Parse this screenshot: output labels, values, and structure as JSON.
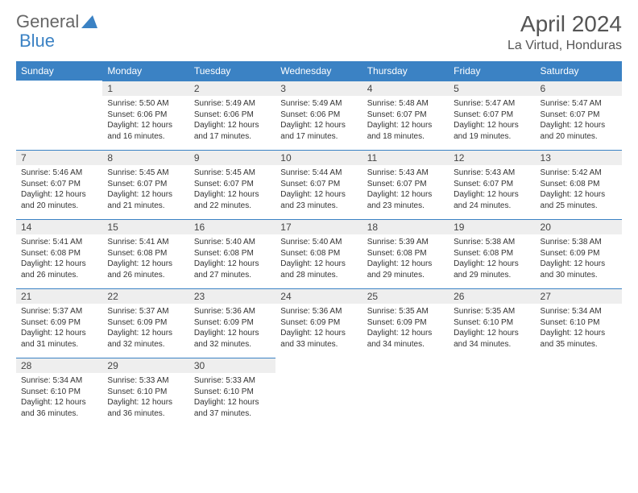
{
  "logo": {
    "text1": "General",
    "text2": "Blue"
  },
  "title": "April 2024",
  "location": "La Virtud, Honduras",
  "theme": {
    "header_bg": "#3b82c4",
    "daynum_bg": "#eeeeee",
    "text": "#333",
    "title_color": "#555"
  },
  "weekdays": [
    "Sunday",
    "Monday",
    "Tuesday",
    "Wednesday",
    "Thursday",
    "Friday",
    "Saturday"
  ],
  "weeks": [
    [
      null,
      {
        "n": "1",
        "sr": "5:50 AM",
        "ss": "6:06 PM",
        "dl": "12 hours and 16 minutes."
      },
      {
        "n": "2",
        "sr": "5:49 AM",
        "ss": "6:06 PM",
        "dl": "12 hours and 17 minutes."
      },
      {
        "n": "3",
        "sr": "5:49 AM",
        "ss": "6:06 PM",
        "dl": "12 hours and 17 minutes."
      },
      {
        "n": "4",
        "sr": "5:48 AM",
        "ss": "6:07 PM",
        "dl": "12 hours and 18 minutes."
      },
      {
        "n": "5",
        "sr": "5:47 AM",
        "ss": "6:07 PM",
        "dl": "12 hours and 19 minutes."
      },
      {
        "n": "6",
        "sr": "5:47 AM",
        "ss": "6:07 PM",
        "dl": "12 hours and 20 minutes."
      }
    ],
    [
      {
        "n": "7",
        "sr": "5:46 AM",
        "ss": "6:07 PM",
        "dl": "12 hours and 20 minutes."
      },
      {
        "n": "8",
        "sr": "5:45 AM",
        "ss": "6:07 PM",
        "dl": "12 hours and 21 minutes."
      },
      {
        "n": "9",
        "sr": "5:45 AM",
        "ss": "6:07 PM",
        "dl": "12 hours and 22 minutes."
      },
      {
        "n": "10",
        "sr": "5:44 AM",
        "ss": "6:07 PM",
        "dl": "12 hours and 23 minutes."
      },
      {
        "n": "11",
        "sr": "5:43 AM",
        "ss": "6:07 PM",
        "dl": "12 hours and 23 minutes."
      },
      {
        "n": "12",
        "sr": "5:43 AM",
        "ss": "6:07 PM",
        "dl": "12 hours and 24 minutes."
      },
      {
        "n": "13",
        "sr": "5:42 AM",
        "ss": "6:08 PM",
        "dl": "12 hours and 25 minutes."
      }
    ],
    [
      {
        "n": "14",
        "sr": "5:41 AM",
        "ss": "6:08 PM",
        "dl": "12 hours and 26 minutes."
      },
      {
        "n": "15",
        "sr": "5:41 AM",
        "ss": "6:08 PM",
        "dl": "12 hours and 26 minutes."
      },
      {
        "n": "16",
        "sr": "5:40 AM",
        "ss": "6:08 PM",
        "dl": "12 hours and 27 minutes."
      },
      {
        "n": "17",
        "sr": "5:40 AM",
        "ss": "6:08 PM",
        "dl": "12 hours and 28 minutes."
      },
      {
        "n": "18",
        "sr": "5:39 AM",
        "ss": "6:08 PM",
        "dl": "12 hours and 29 minutes."
      },
      {
        "n": "19",
        "sr": "5:38 AM",
        "ss": "6:08 PM",
        "dl": "12 hours and 29 minutes."
      },
      {
        "n": "20",
        "sr": "5:38 AM",
        "ss": "6:09 PM",
        "dl": "12 hours and 30 minutes."
      }
    ],
    [
      {
        "n": "21",
        "sr": "5:37 AM",
        "ss": "6:09 PM",
        "dl": "12 hours and 31 minutes."
      },
      {
        "n": "22",
        "sr": "5:37 AM",
        "ss": "6:09 PM",
        "dl": "12 hours and 32 minutes."
      },
      {
        "n": "23",
        "sr": "5:36 AM",
        "ss": "6:09 PM",
        "dl": "12 hours and 32 minutes."
      },
      {
        "n": "24",
        "sr": "5:36 AM",
        "ss": "6:09 PM",
        "dl": "12 hours and 33 minutes."
      },
      {
        "n": "25",
        "sr": "5:35 AM",
        "ss": "6:09 PM",
        "dl": "12 hours and 34 minutes."
      },
      {
        "n": "26",
        "sr": "5:35 AM",
        "ss": "6:10 PM",
        "dl": "12 hours and 34 minutes."
      },
      {
        "n": "27",
        "sr": "5:34 AM",
        "ss": "6:10 PM",
        "dl": "12 hours and 35 minutes."
      }
    ],
    [
      {
        "n": "28",
        "sr": "5:34 AM",
        "ss": "6:10 PM",
        "dl": "12 hours and 36 minutes."
      },
      {
        "n": "29",
        "sr": "5:33 AM",
        "ss": "6:10 PM",
        "dl": "12 hours and 36 minutes."
      },
      {
        "n": "30",
        "sr": "5:33 AM",
        "ss": "6:10 PM",
        "dl": "12 hours and 37 minutes."
      },
      null,
      null,
      null,
      null
    ]
  ],
  "labels": {
    "sunrise": "Sunrise:",
    "sunset": "Sunset:",
    "daylight": "Daylight:"
  }
}
